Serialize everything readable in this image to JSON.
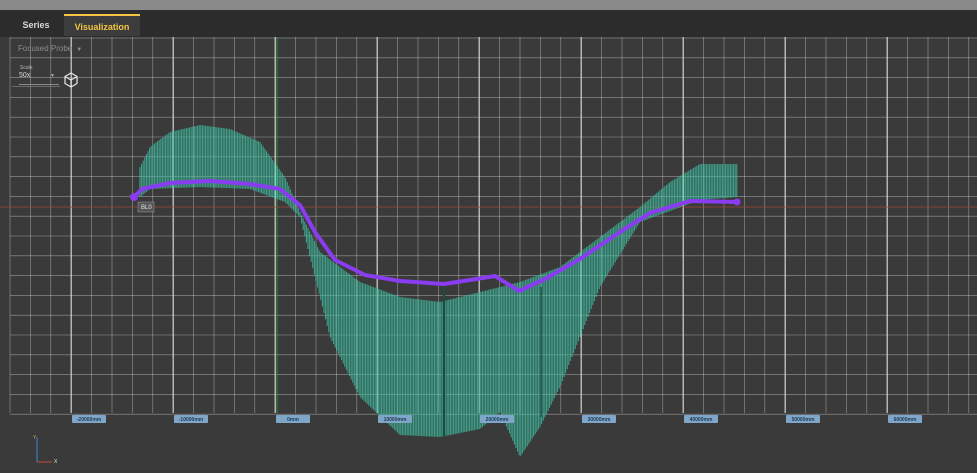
{
  "tabs": [
    {
      "label": "Series",
      "active": false
    },
    {
      "label": "Visualization",
      "active": true
    }
  ],
  "toolbar": {
    "probe_select_value": "Focused Probe",
    "scale_label": "Scale",
    "scale_value": "50x"
  },
  "plot": {
    "x_tick_labels": [
      "-20000mm",
      "-10000mm",
      "0mm",
      "10000mm",
      "20000mm",
      "30000mm",
      "40000mm",
      "50000mm",
      "60000mm"
    ],
    "start_tag": "BL0",
    "axis_gizmo_labels": {
      "y": "Y",
      "x": "X"
    },
    "colors": {
      "background": "#3a3a3a",
      "grid": "#e6e6e6",
      "center_line": "#2f8a3a",
      "reference_line": "#a0463a",
      "profile_line": "#8a3cf0",
      "spread_fill": "#3fbfa3",
      "tab_active": "#f4c542"
    }
  }
}
